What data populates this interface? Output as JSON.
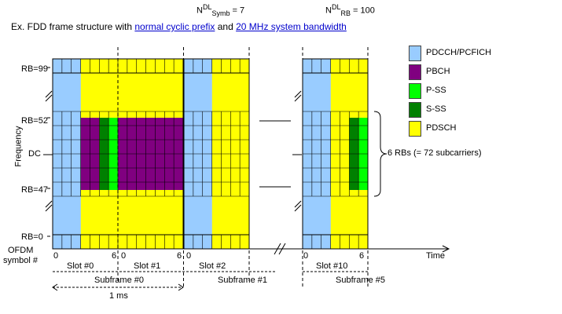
{
  "header": {
    "nsymb_base": "N",
    "nsymb_sup": "DL",
    "nsymb_sub": "Symb",
    "nsymb_value": "= 7",
    "nrb_base": "N",
    "nrb_sup": "DL",
    "nrb_sub": "RB",
    "nrb_value": "= 100"
  },
  "title": {
    "prefix": "Ex. FDD frame structure with ",
    "link1": "normal cyclic prefix",
    "middle": " and ",
    "link2": "20 MHz system bandwidth"
  },
  "axis": {
    "y_label": "Frequency",
    "rb99": "RB=99",
    "rb52": "RB=52",
    "dc": "DC",
    "rb47": "RB=47",
    "rb0": "RB=0",
    "ofdm_line1": "OFDM",
    "ofdm_line2": "symbol #",
    "time": "Time"
  },
  "symbols": {
    "zero": "0",
    "six": "6"
  },
  "slots": {
    "s0": "Slot #0",
    "s1": "Slot #1",
    "s2": "Slot #2",
    "s10": "Slot #10"
  },
  "subframes": {
    "sf0": "Subframe #0",
    "sf1": "Subframe #1",
    "sf5": "Subframe #5"
  },
  "duration": "1 ms",
  "brace_label": "6 RBs (= 72 subcarriers)",
  "legend": [
    {
      "label": "PDCCH/PCFICH",
      "color": "#99ccff"
    },
    {
      "label": "PBCH",
      "color": "#800080"
    },
    {
      "label": "P-SS",
      "color": "#00ff00"
    },
    {
      "label": "S-SS",
      "color": "#008000"
    },
    {
      "label": "PDSCH",
      "color": "#ffff00"
    }
  ]
}
